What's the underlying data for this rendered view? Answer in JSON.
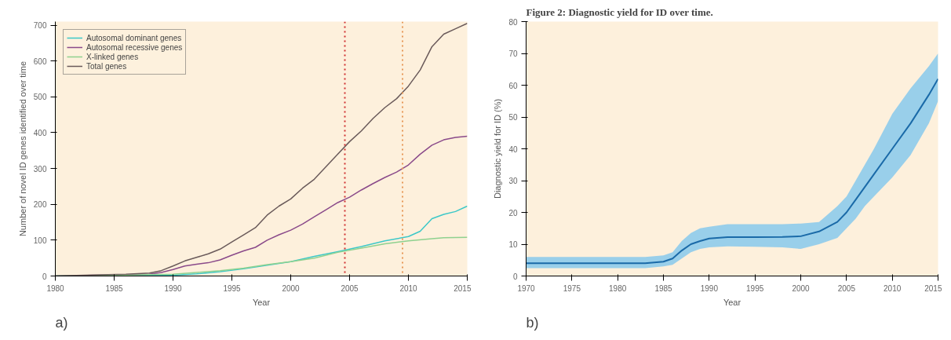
{
  "chart_data": [
    {
      "type": "line",
      "xlabel": "Year",
      "ylabel": "Number of novel ID genes identified over time",
      "annotations": [
        "a)"
      ],
      "xlim": [
        1980,
        2015
      ],
      "ylim": [
        0,
        710
      ],
      "xticks": [
        1980,
        1985,
        1990,
        1995,
        2000,
        2005,
        2010,
        2015
      ],
      "yticks": [
        0,
        100,
        200,
        300,
        400,
        500,
        600,
        700
      ],
      "legend": "top left",
      "grid": false,
      "series": [
        {
          "name": "Autosomal dominant genes",
          "color": "#3cc8c8",
          "x": [
            1980,
            1990,
            1992,
            1994,
            1996,
            1998,
            2000,
            2002,
            2004,
            2006,
            2008,
            2010,
            2011,
            2012,
            2013,
            2014,
            2015
          ],
          "values": [
            0,
            2,
            6,
            12,
            20,
            30,
            40,
            55,
            68,
            82,
            98,
            110,
            125,
            160,
            172,
            180,
            195
          ]
        },
        {
          "name": "Autosomal recessive genes",
          "color": "#8a4a8a",
          "x": [
            1980,
            1988,
            1989,
            1990,
            1991,
            1992,
            1993,
            1994,
            1995,
            1996,
            1997,
            1998,
            1999,
            2000,
            2001,
            2002,
            2003,
            2004,
            2005,
            2006,
            2007,
            2008,
            2009,
            2010,
            2011,
            2012,
            2013,
            2014,
            2015
          ],
          "values": [
            0,
            5,
            10,
            18,
            28,
            33,
            37,
            45,
            58,
            70,
            80,
            100,
            115,
            128,
            145,
            165,
            185,
            205,
            220,
            240,
            258,
            275,
            290,
            310,
            340,
            365,
            380,
            387,
            390
          ]
        },
        {
          "name": "X-linked genes",
          "color": "#8fd18f",
          "x": [
            1980,
            1986,
            1990,
            1992,
            1994,
            1996,
            1998,
            2000,
            2002,
            2004,
            2006,
            2008,
            2010,
            2012,
            2013,
            2015
          ],
          "values": [
            0,
            3,
            5,
            10,
            15,
            22,
            32,
            40,
            50,
            66,
            78,
            90,
            98,
            104,
            107,
            108
          ]
        },
        {
          "name": "Total genes",
          "color": "#6a5a5a",
          "x": [
            1980,
            1983,
            1986,
            1988,
            1989,
            1990,
            1991,
            1992,
            1993,
            1994,
            1995,
            1996,
            1997,
            1998,
            1999,
            2000,
            2001,
            2002,
            2003,
            2004,
            2005,
            2006,
            2007,
            2008,
            2009,
            2010,
            2011,
            2012,
            2013,
            2014,
            2015
          ],
          "values": [
            0,
            3,
            5,
            8,
            15,
            28,
            42,
            52,
            62,
            75,
            95,
            115,
            135,
            170,
            195,
            215,
            245,
            270,
            305,
            340,
            375,
            405,
            440,
            470,
            495,
            530,
            575,
            640,
            675,
            690,
            705
          ]
        }
      ],
      "ref_lines": [
        {
          "axis": "x",
          "value": 2004.6,
          "color": "#d03030",
          "line_style": "dotted"
        },
        {
          "axis": "x",
          "value": 2009.5,
          "color": "#e89a5a",
          "line_style": "dotted"
        }
      ]
    },
    {
      "type": "line",
      "title": "Figure 2: Diagnostic yield for ID over time.",
      "xlabel": "Year",
      "ylabel": "Diagnostic yield for ID (%)",
      "annotations": [
        "b)"
      ],
      "xlim": [
        1970,
        2015
      ],
      "ylim": [
        0,
        80
      ],
      "xticks": [
        1970,
        1975,
        1980,
        1985,
        1990,
        1995,
        2000,
        2005,
        2010,
        2015
      ],
      "yticks": [
        0,
        10,
        20,
        30,
        40,
        50,
        60,
        70,
        80
      ],
      "grid": false,
      "series": [
        {
          "color": "#1a6aa8",
          "x": [
            1970,
            1975,
            1980,
            1983,
            1985,
            1986,
            1987,
            1988,
            1989,
            1990,
            1992,
            1995,
            1998,
            2000,
            2002,
            2004,
            2005,
            2006,
            2007,
            2008,
            2010,
            2012,
            2014,
            2015
          ],
          "values": [
            4,
            4,
            4,
            4,
            4.5,
            5.5,
            8,
            10,
            11,
            11.8,
            12.2,
            12.2,
            12.3,
            12.5,
            14,
            17,
            20,
            24,
            28,
            32,
            40,
            48,
            57,
            62
          ],
          "lower": [
            2.5,
            2.5,
            2.5,
            2.5,
            3,
            3.5,
            5.5,
            7.5,
            8.5,
            9,
            9.3,
            9.2,
            9,
            8.5,
            10,
            12,
            15,
            18,
            22,
            25,
            31,
            38,
            48,
            55
          ],
          "upper": [
            6,
            6,
            6,
            6,
            6.5,
            7.5,
            11,
            13.5,
            15,
            15.5,
            16.3,
            16.3,
            16.3,
            16.5,
            17,
            22,
            25,
            30,
            35,
            40,
            51,
            59,
            66,
            70
          ]
        }
      ]
    }
  ]
}
